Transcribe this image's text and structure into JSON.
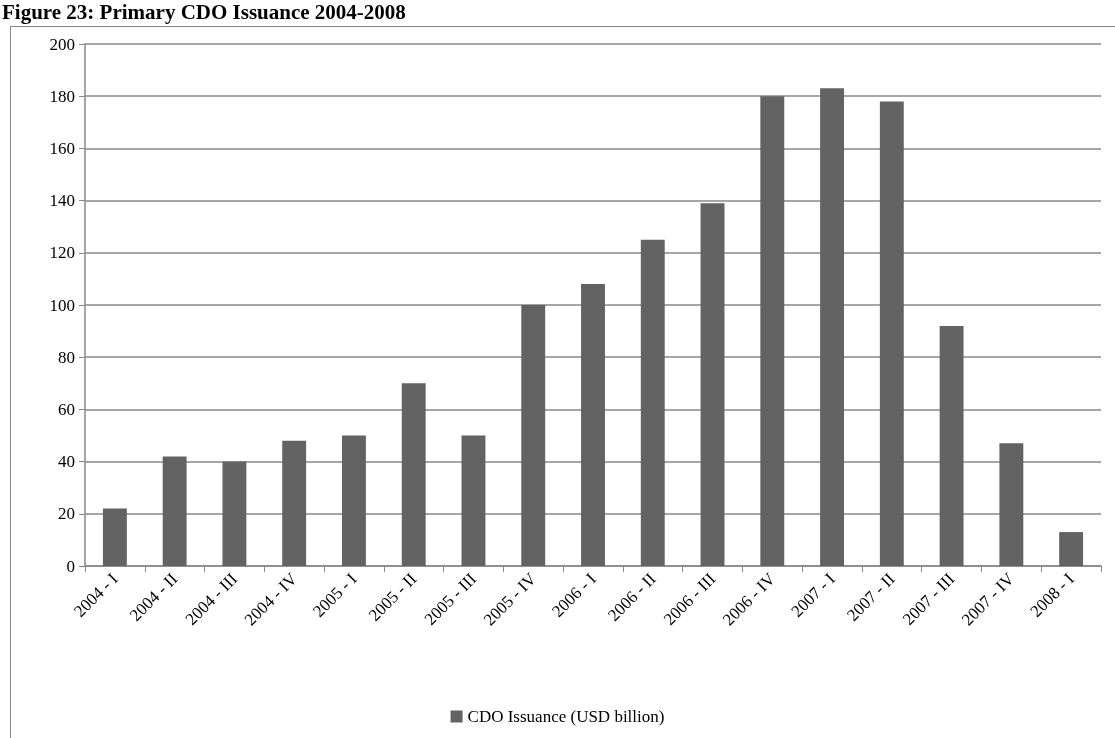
{
  "chart_data": {
    "type": "bar",
    "title": "Figure 23: Primary CDO Issuance 2004-2008",
    "categories": [
      "2004 - I",
      "2004 - II",
      "2004 - III",
      "2004 - IV",
      "2005 - I",
      "2005 - II",
      "2005 - III",
      "2005 - IV",
      "2006 - I",
      "2006 - II",
      "2006 - III",
      "2006 - IV",
      "2007 - I",
      "2007 - II",
      "2007 - III",
      "2007 - IV",
      "2008 - I"
    ],
    "series": [
      {
        "name": "CDO Issuance (USD billion)",
        "color": "#636363",
        "values": [
          22,
          42,
          40,
          48,
          50,
          70,
          50,
          100,
          108,
          125,
          139,
          180,
          183,
          178,
          92,
          47,
          13
        ]
      }
    ],
    "ylim": [
      0,
      200
    ],
    "yticks": [
      0,
      20,
      40,
      60,
      80,
      100,
      120,
      140,
      160,
      180,
      200
    ],
    "grid": "y",
    "legend": "bottom"
  }
}
